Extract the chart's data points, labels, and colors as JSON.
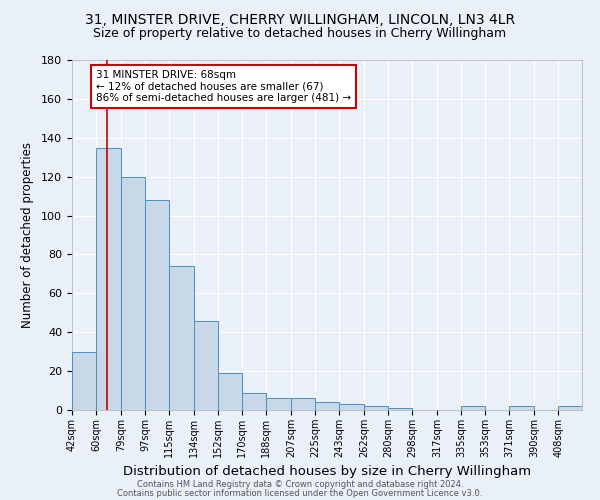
{
  "title1": "31, MINSTER DRIVE, CHERRY WILLINGHAM, LINCOLN, LN3 4LR",
  "title2": "Size of property relative to detached houses in Cherry Willingham",
  "xlabel": "Distribution of detached houses by size in Cherry Willingham",
  "ylabel": "Number of detached properties",
  "footer1": "Contains HM Land Registry data © Crown copyright and database right 2024.",
  "footer2": "Contains public sector information licensed under the Open Government Licence v3.0.",
  "bin_labels": [
    "42sqm",
    "60sqm",
    "79sqm",
    "97sqm",
    "115sqm",
    "134sqm",
    "152sqm",
    "170sqm",
    "188sqm",
    "207sqm",
    "225sqm",
    "243sqm",
    "262sqm",
    "280sqm",
    "298sqm",
    "317sqm",
    "335sqm",
    "353sqm",
    "371sqm",
    "390sqm",
    "408sqm"
  ],
  "bar_values": [
    30,
    135,
    120,
    108,
    74,
    46,
    19,
    9,
    6,
    6,
    4,
    3,
    2,
    1,
    0,
    0,
    2,
    0,
    2,
    0,
    2
  ],
  "bar_color": "#c8d8e8",
  "bar_edge_color": "#4a90c4",
  "property_line_x": 68,
  "bin_edges": [
    42,
    60,
    79,
    97,
    115,
    134,
    152,
    170,
    188,
    207,
    225,
    243,
    262,
    280,
    298,
    317,
    335,
    353,
    371,
    390,
    408,
    426
  ],
  "annotation_text": "31 MINSTER DRIVE: 68sqm\n← 12% of detached houses are smaller (67)\n86% of semi-detached houses are larger (481) →",
  "annotation_box_color": "#ffffff",
  "annotation_box_edge": "#cc0000",
  "red_line_color": "#cc0000",
  "ylim": [
    0,
    180
  ],
  "yticks": [
    0,
    20,
    40,
    60,
    80,
    100,
    120,
    140,
    160,
    180
  ],
  "background_color": "#eaf0f8",
  "grid_color": "#ffffff",
  "title1_fontsize": 10,
  "title2_fontsize": 9,
  "xlabel_fontsize": 9.5,
  "ylabel_fontsize": 8.5
}
